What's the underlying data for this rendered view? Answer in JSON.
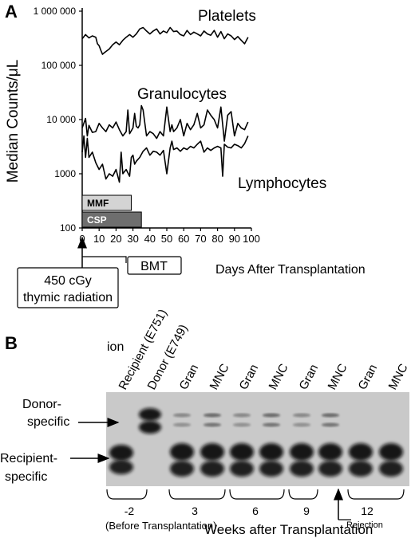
{
  "panel_a": {
    "letter": "A",
    "ylabel": "Median Counts/μL",
    "xlabel": "Days After Transplantation",
    "y_ticks": [
      "1 000 000",
      "100 000",
      "10 000",
      "1000",
      "100"
    ],
    "x_ticks": [
      "0",
      "10",
      "20",
      "30",
      "40",
      "50",
      "60",
      "70",
      "80",
      "90",
      "100"
    ],
    "series_labels": {
      "platelets": "Platelets",
      "granulocytes": "Granulocytes",
      "lymphocytes": "Lymphocytes"
    },
    "bars": [
      {
        "label": "MMF",
        "start": 0,
        "end": 29,
        "color": "#d4d4d4",
        "text_color": "#000000"
      },
      {
        "label": "CSP",
        "start": 0,
        "end": 35,
        "color": "#6e6e6e",
        "text_color": "#ffffff"
      }
    ],
    "annotations": {
      "radiation_line1": "450 cGy",
      "radiation_line2": "thymic radiation",
      "bmt": "BMT"
    }
  },
  "chart_data": {
    "type": "line",
    "xlabel": "Days After Transplantation",
    "ylabel": "Median Counts/μL",
    "xlim": [
      0,
      100
    ],
    "ylim": [
      100,
      1000000
    ],
    "y_scale": "log",
    "grid": false,
    "series": [
      {
        "name": "Platelets",
        "x": [
          0,
          2,
          4,
          6,
          8,
          9,
          10,
          11,
          12,
          13,
          14,
          16,
          18,
          20,
          22,
          24,
          26,
          28,
          30,
          32,
          34,
          36,
          38,
          40,
          42,
          44,
          46,
          48,
          50,
          52,
          54,
          56,
          58,
          60,
          62,
          64,
          66,
          68,
          70,
          72,
          74,
          76,
          78,
          80,
          82,
          84,
          86,
          88,
          90,
          92,
          94,
          96,
          98
        ],
        "y": [
          310000,
          370000,
          320000,
          350000,
          330000,
          250000,
          230000,
          190000,
          160000,
          170000,
          180000,
          200000,
          240000,
          270000,
          240000,
          290000,
          330000,
          370000,
          330000,
          380000,
          470000,
          500000,
          430000,
          380000,
          430000,
          470000,
          380000,
          430000,
          400000,
          500000,
          420000,
          430000,
          370000,
          350000,
          440000,
          370000,
          410000,
          380000,
          350000,
          430000,
          380000,
          360000,
          440000,
          330000,
          420000,
          310000,
          380000,
          350000,
          300000,
          340000,
          290000,
          250000,
          330000
        ]
      },
      {
        "name": "Granulocytes",
        "x": [
          0,
          2,
          3,
          4,
          6,
          8,
          10,
          12,
          14,
          16,
          18,
          20,
          22,
          24,
          26,
          27,
          28,
          30,
          31,
          32,
          33,
          34,
          35,
          36,
          38,
          40,
          42,
          44,
          46,
          48,
          50,
          52,
          53,
          54,
          56,
          58,
          60,
          62,
          64,
          66,
          68,
          70,
          72,
          74,
          76,
          78,
          80,
          82,
          84,
          86,
          88,
          90,
          92,
          94,
          96,
          98
        ],
        "y": [
          7000,
          10500,
          5000,
          7800,
          5800,
          6000,
          8500,
          7000,
          6000,
          8000,
          7000,
          9000,
          6500,
          5000,
          6000,
          15000,
          5500,
          7000,
          13000,
          7500,
          7000,
          8000,
          18000,
          15000,
          5000,
          6000,
          5500,
          4500,
          6000,
          5000,
          17000,
          6000,
          8000,
          6000,
          7000,
          10000,
          5000,
          8500,
          6500,
          8000,
          13000,
          7000,
          8000,
          15000,
          12000,
          10000,
          7000,
          17000,
          4000,
          12000,
          14000,
          5000,
          8500,
          7000,
          6500,
          9000
        ]
      },
      {
        "name": "Lymphocytes",
        "x": [
          0,
          1,
          2,
          3,
          4,
          6,
          8,
          10,
          12,
          14,
          16,
          18,
          20,
          22,
          23,
          24,
          26,
          28,
          29,
          30,
          31,
          32,
          34,
          36,
          38,
          40,
          42,
          44,
          46,
          48,
          50,
          52,
          53,
          54,
          56,
          58,
          60,
          62,
          64,
          66,
          68,
          70,
          72,
          74,
          76,
          78,
          80,
          82,
          83,
          84,
          86,
          88,
          90,
          92,
          94,
          96,
          98
        ],
        "y": [
          2500,
          5000,
          2000,
          4500,
          2000,
          2500,
          1600,
          1200,
          1500,
          800,
          1000,
          900,
          1200,
          700,
          2500,
          1000,
          1200,
          900,
          2000,
          2200,
          1500,
          1700,
          2000,
          2600,
          3000,
          2200,
          2600,
          2500,
          2200,
          2700,
          1000,
          3000,
          4000,
          2800,
          3000,
          2600,
          3000,
          2800,
          3200,
          3000,
          3500,
          4000,
          2500,
          3000,
          2700,
          3000,
          3200,
          3000,
          900,
          3500,
          3100,
          3000,
          3500,
          3300,
          3000,
          3600,
          5000
        ]
      }
    ]
  },
  "panel_b": {
    "letter": "B",
    "top_label": "ion",
    "lanes": [
      {
        "label": "Recipient (E751)"
      },
      {
        "label": "Donor (E749)"
      },
      {
        "label": "Gran"
      },
      {
        "label": "MNC"
      },
      {
        "label": "Gran"
      },
      {
        "label": "MNC"
      },
      {
        "label": "Gran"
      },
      {
        "label": "MNC"
      },
      {
        "label": "Gran"
      },
      {
        "label": "MNC"
      }
    ],
    "row_labels": {
      "donor_line1": "Donor-",
      "donor_line2": "specific",
      "recipient_line1": "Recipient-",
      "recipient_line2": "specific"
    },
    "weeks": [
      "-2",
      "3",
      "6",
      "9",
      "12"
    ],
    "before_note": "(Before Transplantation)",
    "xlabel": "Weeks after Transplantation",
    "rejection": "Rejection"
  }
}
